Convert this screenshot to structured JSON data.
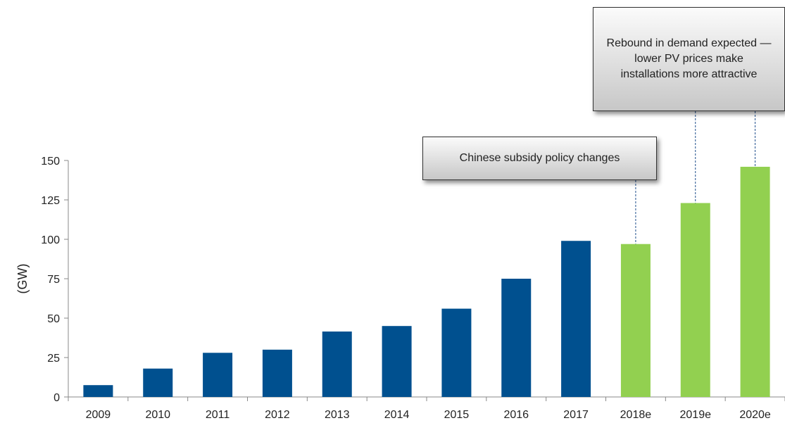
{
  "chart_data": {
    "type": "bar",
    "title": "",
    "xlabel": "",
    "ylabel": "(GW)",
    "ylim": [
      0,
      150
    ],
    "yticks": [
      0,
      25,
      50,
      75,
      100,
      125,
      150
    ],
    "grid": false,
    "categories": [
      "2009",
      "2010",
      "2011",
      "2012",
      "2013",
      "2014",
      "2015",
      "2016",
      "2017",
      "2018e",
      "2019e",
      "2020e"
    ],
    "values": [
      7.5,
      18,
      28,
      30,
      41.5,
      45,
      56,
      75,
      99,
      97,
      123,
      146
    ],
    "colors": {
      "actual": "#00508f",
      "estimate": "#92d050"
    },
    "estimate_categories": [
      "2018e",
      "2019e",
      "2020e"
    ],
    "annotations": [
      {
        "text": "Chinese subsidy policy changes",
        "targets": [
          "2018e"
        ]
      },
      {
        "text": "Rebound in demand expected — lower PV prices make installations more attractive",
        "targets": [
          "2019e",
          "2020e"
        ]
      }
    ]
  }
}
